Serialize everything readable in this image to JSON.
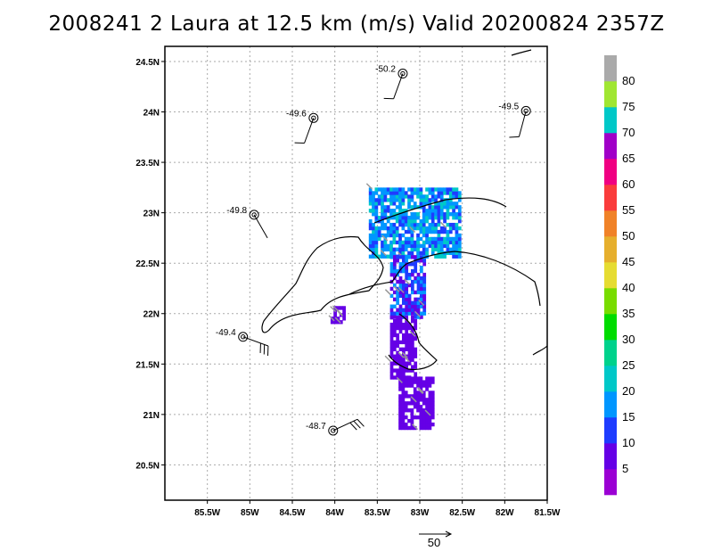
{
  "title": "2008241 2 Laura at 12.5 km (m/s) Valid 20200824  2357Z",
  "chart_data": {
    "type": "heatmap",
    "title": "2008241 2 Laura at 12.5 km (m/s) Valid 20200824  2357Z",
    "xlim": [
      -86.0,
      -81.5
    ],
    "ylim": [
      20.15,
      24.65
    ],
    "x_ticks": [
      {
        "v": -85.5,
        "label": "85.5W"
      },
      {
        "v": -85.0,
        "label": "85W"
      },
      {
        "v": -84.5,
        "label": "84.5W"
      },
      {
        "v": -84.0,
        "label": "84W"
      },
      {
        "v": -83.5,
        "label": "83.5W"
      },
      {
        "v": -83.0,
        "label": "83W"
      },
      {
        "v": -82.5,
        "label": "82.5W"
      },
      {
        "v": -82.0,
        "label": "82W"
      },
      {
        "v": -81.5,
        "label": "81.5W"
      }
    ],
    "y_ticks": [
      {
        "v": 20.5,
        "label": "20.5N"
      },
      {
        "v": 21.0,
        "label": "21N"
      },
      {
        "v": 21.5,
        "label": "21.5N"
      },
      {
        "v": 22.0,
        "label": "22N"
      },
      {
        "v": 22.5,
        "label": "22.5N"
      },
      {
        "v": 23.0,
        "label": "23N"
      },
      {
        "v": 23.5,
        "label": "23.5N"
      },
      {
        "v": 24.0,
        "label": "24N"
      },
      {
        "v": 24.5,
        "label": "24.5N"
      }
    ],
    "grid": true,
    "colorbar": {
      "labels": [
        "5",
        "10",
        "15",
        "20",
        "25",
        "30",
        "35",
        "40",
        "45",
        "50",
        "55",
        "60",
        "65",
        "70",
        "75",
        "80"
      ],
      "colors": [
        "#9b00d4",
        "#6500e6",
        "#1e3cff",
        "#0096ff",
        "#00c8c8",
        "#00d28c",
        "#00dc00",
        "#78dc00",
        "#e6dc32",
        "#e6af2d",
        "#f08228",
        "#fa3c3c",
        "#f00082",
        "#a000c8",
        "#00c8c8",
        "#a0e632",
        "#aaaaaa"
      ]
    },
    "stations": [
      {
        "lon": -83.2,
        "lat": 24.38,
        "value": "-50.2",
        "barb_dir": 200,
        "barbs": 1
      },
      {
        "lon": -84.25,
        "lat": 23.94,
        "value": "-49.6",
        "barb_dir": 200,
        "barbs": 1
      },
      {
        "lon": -81.75,
        "lat": 24.01,
        "value": "-49.5",
        "barb_dir": 195,
        "barbs": 1
      },
      {
        "lon": -84.95,
        "lat": 22.98,
        "value": "-49.8",
        "barb_dir": 150,
        "barbs": 0
      },
      {
        "lon": -85.08,
        "lat": 21.77,
        "value": "-49.4",
        "barb_dir": 110,
        "barbs": 3
      },
      {
        "lon": -84.02,
        "lat": 20.84,
        "value": "-48.7",
        "barb_dir": 65,
        "barbs": 3
      }
    ],
    "reference_vector": {
      "label": "50"
    },
    "wind_regions": [
      {
        "lon0": -83.6,
        "lon1": -82.55,
        "lat0": 22.55,
        "lat1": 23.25,
        "values": [
          10,
          15,
          15,
          20
        ]
      },
      {
        "lon0": -83.35,
        "lon1": -82.95,
        "lat0": 21.95,
        "lat1": 22.55,
        "values": [
          5,
          10,
          15
        ]
      },
      {
        "lon0": -83.35,
        "lon1": -83.05,
        "lat0": 21.35,
        "lat1": 21.95,
        "values": [
          5
        ]
      },
      {
        "lon0": -83.25,
        "lon1": -82.85,
        "lat0": 20.85,
        "lat1": 21.35,
        "values": [
          5
        ]
      },
      {
        "lon0": -84.05,
        "lon1": -83.9,
        "lat0": 21.9,
        "lat1": 22.05,
        "values": [
          5
        ]
      }
    ]
  }
}
